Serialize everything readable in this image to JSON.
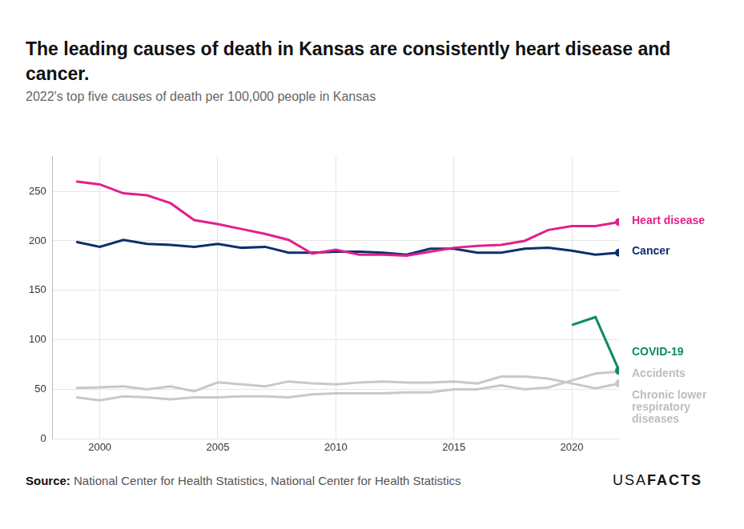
{
  "chart_data": {
    "type": "line",
    "title": "The leading causes of death in Kansas are consistently heart disease and cancer.",
    "subtitle": "2022's top five causes of death per 100,000 people in Kansas",
    "source_label": "Source:",
    "source": "National Center for Health Statistics, National Center for Health Statistics",
    "logo": [
      "USA",
      "FACTS"
    ],
    "x": [
      1999,
      2000,
      2001,
      2002,
      2003,
      2004,
      2005,
      2006,
      2007,
      2008,
      2009,
      2010,
      2011,
      2012,
      2013,
      2014,
      2015,
      2016,
      2017,
      2018,
      2019,
      2020,
      2021,
      2022
    ],
    "xlim": [
      1998,
      2022
    ],
    "xticks": [
      2000,
      2005,
      2010,
      2015,
      2020
    ],
    "ylim": [
      0,
      285
    ],
    "yticks": [
      0,
      50,
      100,
      150,
      200,
      250
    ],
    "grid": true,
    "marker": "end",
    "series": [
      {
        "name": "Heart disease",
        "color": "#e0218a",
        "values": [
          260,
          257,
          248,
          246,
          238,
          221,
          217,
          212,
          207,
          201,
          187,
          191,
          186,
          186,
          185,
          189,
          193,
          195,
          196,
          200,
          211,
          215,
          215,
          219
        ]
      },
      {
        "name": "Cancer",
        "color": "#0d2f6e",
        "values": [
          199,
          194,
          201,
          197,
          196,
          194,
          197,
          193,
          194,
          188,
          188,
          189,
          189,
          188,
          186,
          192,
          192,
          188,
          188,
          192,
          193,
          190,
          186,
          188
        ]
      },
      {
        "name": "COVID-19",
        "color": "#0a8a6a",
        "values": [
          null,
          null,
          null,
          null,
          null,
          null,
          null,
          null,
          null,
          null,
          null,
          null,
          null,
          null,
          null,
          null,
          null,
          null,
          null,
          null,
          null,
          115,
          123,
          69
        ]
      },
      {
        "name": "Accidents",
        "color": "#c8c8c8",
        "values": [
          42,
          39,
          43,
          42,
          40,
          42,
          42,
          43,
          43,
          42,
          45,
          46,
          46,
          46,
          47,
          47,
          50,
          50,
          54,
          50,
          52,
          59,
          66,
          68
        ]
      },
      {
        "name": "Chronic lower respiratory diseases",
        "color": "#c8c8c8",
        "values": [
          51.5,
          52,
          53,
          50,
          53,
          48,
          57,
          55,
          53,
          58,
          56,
          55,
          57,
          58,
          57,
          57,
          58,
          56,
          63,
          63,
          61,
          56,
          51,
          56
        ]
      }
    ]
  }
}
